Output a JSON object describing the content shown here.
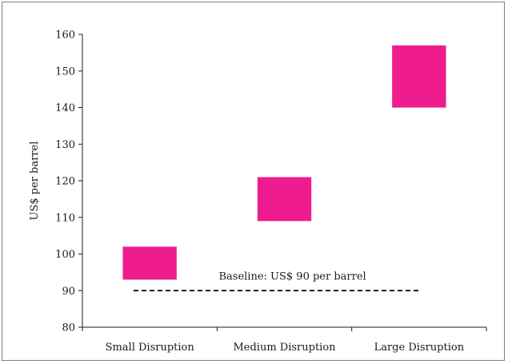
{
  "chart_data": {
    "type": "bar",
    "subtype": "floating-range",
    "categories": [
      "Small Disruption",
      "Medium Disruption",
      "Large Disruption"
    ],
    "ranges": [
      {
        "low": 93,
        "high": 102
      },
      {
        "low": 109,
        "high": 121
      },
      {
        "low": 140,
        "high": 157
      }
    ],
    "title": "",
    "xlabel": "",
    "ylabel": "US$ per barrel",
    "ylim": [
      80,
      160
    ],
    "yticks": [
      80,
      90,
      100,
      110,
      120,
      130,
      140,
      150,
      160
    ],
    "baseline": {
      "value": 90,
      "label": "Baseline: US$ 90 per barrel"
    },
    "bar_color": "#ee1c8f",
    "grid": false,
    "legend": "none"
  }
}
